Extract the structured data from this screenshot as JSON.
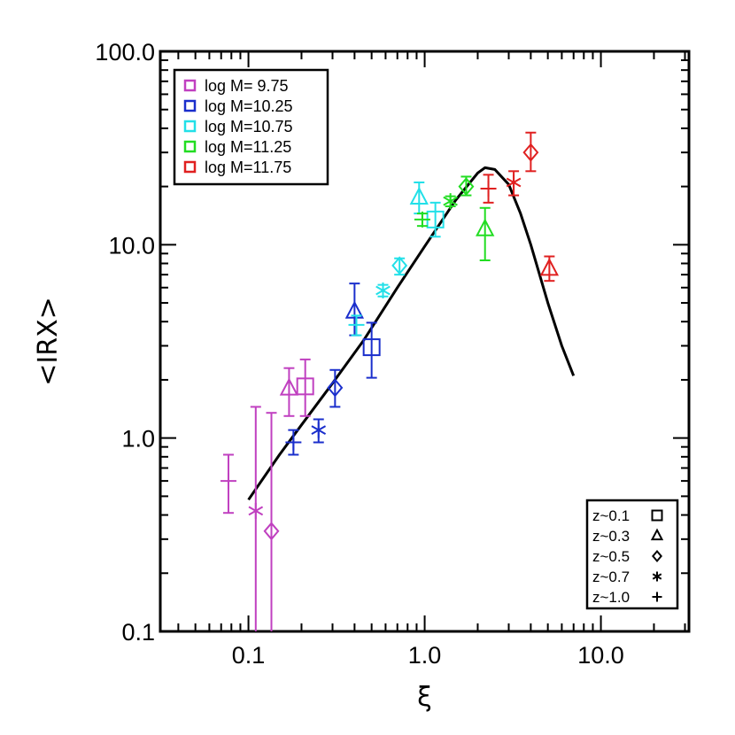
{
  "chart_data": {
    "type": "scatter",
    "title": "",
    "xlabel": "ξ",
    "ylabel": "<IRX>",
    "xscale": "log",
    "yscale": "log",
    "xlim": [
      0.0316,
      31.6
    ],
    "ylim": [
      0.1,
      100
    ],
    "x_tick_labels": [
      {
        "value": 0.1,
        "label": "0.1"
      },
      {
        "value": 1,
        "label": "1.0"
      },
      {
        "value": 10,
        "label": "10.0"
      }
    ],
    "y_tick_labels": [
      {
        "value": 0.1,
        "label": "0.1"
      },
      {
        "value": 1,
        "label": "1.0"
      },
      {
        "value": 10,
        "label": "10.0"
      },
      {
        "value": 100,
        "label": "100.0"
      }
    ],
    "mass_legend": {
      "position": "top-left",
      "entries": [
        {
          "label": "log M= 9.75",
          "color": "#c040c0"
        },
        {
          "label": "log M=10.25",
          "color": "#1a2ecc"
        },
        {
          "label": "log M=10.75",
          "color": "#22e0e8"
        },
        {
          "label": "log M=11.25",
          "color": "#22dd22"
        },
        {
          "label": "log M=11.75",
          "color": "#e02020"
        }
      ]
    },
    "redshift_legend": {
      "position": "bottom-right",
      "entries": [
        {
          "label": "z~0.1",
          "marker": "square"
        },
        {
          "label": "z~0.3",
          "marker": "triangle"
        },
        {
          "label": "z~0.5",
          "marker": "diamond"
        },
        {
          "label": "z~0.7",
          "marker": "asterisk"
        },
        {
          "label": "z~1.0",
          "marker": "plus"
        }
      ]
    },
    "series": [
      {
        "name": "log M= 9.75",
        "color": "#c040c0",
        "points": [
          {
            "z": "z~0.1",
            "marker": "square",
            "x": 0.21,
            "y": 1.85,
            "yerr": [
              1.3,
              2.55
            ]
          },
          {
            "z": "z~0.3",
            "marker": "triangle",
            "x": 0.17,
            "y": 1.8,
            "yerr": [
              1.3,
              2.3
            ]
          },
          {
            "z": "z~0.5",
            "marker": "diamond",
            "x": 0.135,
            "y": 0.33,
            "yerr": [
              0.1,
              1.35
            ]
          },
          {
            "z": "z~0.7",
            "marker": "asterisk",
            "x": 0.11,
            "y": 0.42,
            "yerr": [
              0.1,
              1.45
            ]
          },
          {
            "z": "z~1.0",
            "marker": "plus",
            "x": 0.077,
            "y": 0.6,
            "yerr": [
              0.41,
              0.82
            ]
          }
        ]
      },
      {
        "name": "log M=10.25",
        "color": "#1a2ecc",
        "points": [
          {
            "z": "z~0.1",
            "marker": "square",
            "x": 0.5,
            "y": 2.95,
            "yerr": [
              2.05,
              3.95
            ]
          },
          {
            "z": "z~0.3",
            "marker": "triangle",
            "x": 0.4,
            "y": 4.5,
            "yerr": [
              3.4,
              6.3
            ]
          },
          {
            "z": "z~0.5",
            "marker": "diamond",
            "x": 0.31,
            "y": 1.82,
            "yerr": [
              1.45,
              2.25
            ]
          },
          {
            "z": "z~0.7",
            "marker": "asterisk",
            "x": 0.25,
            "y": 1.1,
            "yerr": [
              0.95,
              1.25
            ]
          },
          {
            "z": "z~1.0",
            "marker": "plus",
            "x": 0.18,
            "y": 0.95,
            "yerr": [
              0.82,
              1.1
            ]
          }
        ]
      },
      {
        "name": "log M=10.75",
        "color": "#22e0e8",
        "points": [
          {
            "z": "z~0.1",
            "marker": "square",
            "x": 1.15,
            "y": 13.5,
            "yerr": [
              11.0,
              16.5
            ]
          },
          {
            "z": "z~0.3",
            "marker": "triangle",
            "x": 0.93,
            "y": 17.5,
            "yerr": [
              14.5,
              21.0
            ]
          },
          {
            "z": "z~0.5",
            "marker": "diamond",
            "x": 0.72,
            "y": 7.8,
            "yerr": [
              7.0,
              8.5
            ]
          },
          {
            "z": "z~0.7",
            "marker": "asterisk",
            "x": 0.58,
            "y": 5.8,
            "yerr": [
              5.4,
              6.2
            ]
          },
          {
            "z": "z~1.0",
            "marker": "plus",
            "x": 0.41,
            "y": 3.85,
            "yerr": [
              3.4,
              4.3
            ]
          }
        ]
      },
      {
        "name": "log M=11.25",
        "color": "#22dd22",
        "points": [
          {
            "z": "z~0.3",
            "marker": "triangle",
            "x": 2.2,
            "y": 12.0,
            "yerr": [
              8.3,
              15.5
            ]
          },
          {
            "z": "z~0.5",
            "marker": "diamond",
            "x": 1.72,
            "y": 20.0,
            "yerr": [
              18.0,
              22.5
            ]
          },
          {
            "z": "z~0.7",
            "marker": "asterisk",
            "x": 1.4,
            "y": 16.8,
            "yerr": [
              15.8,
              17.8
            ]
          },
          {
            "z": "z~1.0",
            "marker": "plus",
            "x": 0.97,
            "y": 13.5,
            "yerr": [
              12.5,
              14.5
            ]
          }
        ]
      },
      {
        "name": "log M=11.75",
        "color": "#e02020",
        "points": [
          {
            "z": "z~0.3",
            "marker": "triangle",
            "x": 5.1,
            "y": 7.5,
            "yerr": [
              6.5,
              8.7
            ]
          },
          {
            "z": "z~0.5",
            "marker": "diamond",
            "x": 4.0,
            "y": 30.0,
            "yerr": [
              24.0,
              38.0
            ]
          },
          {
            "z": "z~0.7",
            "marker": "asterisk",
            "x": 3.2,
            "y": 21.0,
            "yerr": [
              18.0,
              24.0
            ]
          },
          {
            "z": "z~1.0",
            "marker": "plus",
            "x": 2.3,
            "y": 19.5,
            "yerr": [
              16.5,
              23.0
            ]
          }
        ]
      }
    ],
    "model_curve": {
      "name": "model",
      "color": "#000000",
      "points": [
        [
          0.1,
          0.48
        ],
        [
          0.15,
          0.82
        ],
        [
          0.2,
          1.17
        ],
        [
          0.3,
          1.92
        ],
        [
          0.45,
          3.2
        ],
        [
          0.7,
          6.0
        ],
        [
          1.0,
          9.8
        ],
        [
          1.5,
          17.0
        ],
        [
          2.0,
          23.5
        ],
        [
          2.2,
          25.0
        ],
        [
          2.5,
          24.5
        ],
        [
          3.0,
          20.5
        ],
        [
          3.5,
          14.5
        ],
        [
          4.0,
          10.0
        ],
        [
          5.0,
          5.0
        ],
        [
          6.0,
          3.0
        ],
        [
          7.0,
          2.1
        ]
      ]
    }
  }
}
